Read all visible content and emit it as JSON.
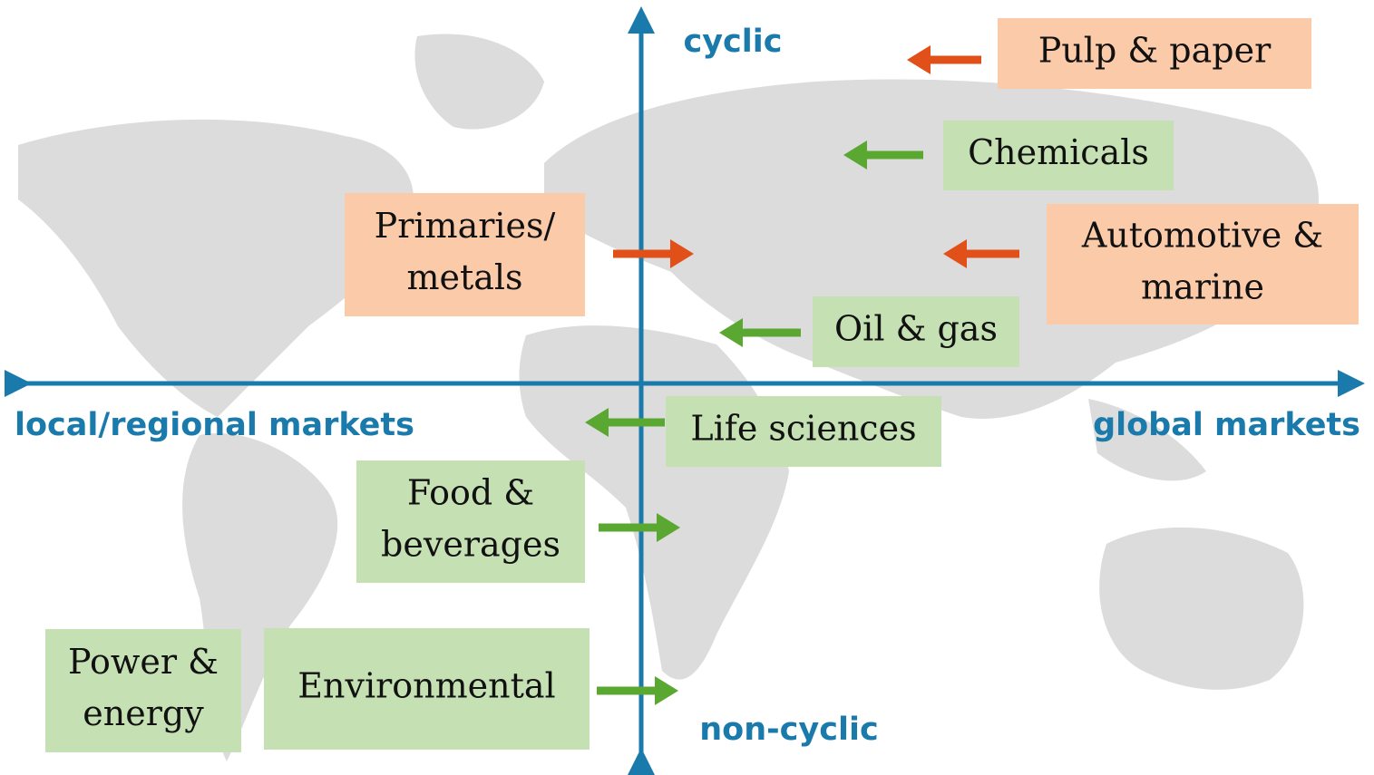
{
  "axes": {
    "top": "cyclic",
    "bottom": "non-cyclic",
    "left": "local/regional markets",
    "right": "global markets"
  },
  "nodes": [
    {
      "lines": [
        "Pulp & paper"
      ]
    },
    {
      "lines": [
        "Chemicals"
      ]
    },
    {
      "lines": [
        "Automotive &",
        "marine"
      ]
    },
    {
      "lines": [
        "Primaries/",
        "metals"
      ]
    },
    {
      "lines": [
        "Oil & gas"
      ]
    },
    {
      "lines": [
        "Life sciences"
      ]
    },
    {
      "lines": [
        "Food &",
        "beverages"
      ]
    },
    {
      "lines": [
        "Environmental"
      ]
    },
    {
      "lines": [
        "Power &",
        "energy"
      ]
    }
  ]
}
